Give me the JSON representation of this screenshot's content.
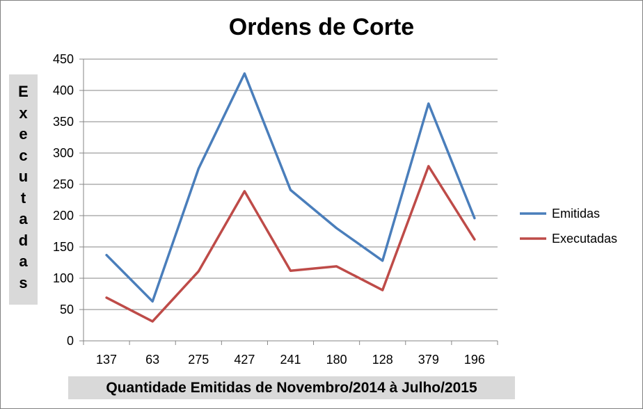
{
  "chart_data": {
    "type": "line",
    "title": "Ordens de Corte",
    "xlabel": "Quantidade Emitidas de Novembro/2014 à Julho/2015",
    "ylabel": "Executadas",
    "categories": [
      "137",
      "63",
      "275",
      "427",
      "241",
      "180",
      "128",
      "379",
      "196"
    ],
    "ylim": [
      0,
      450
    ],
    "yticks": [
      0,
      50,
      100,
      150,
      200,
      250,
      300,
      350,
      400,
      450
    ],
    "grid": true,
    "legend": "right",
    "series": [
      {
        "name": "Emitidas",
        "color": "#4a7ebb",
        "values": [
          137,
          63,
          275,
          427,
          241,
          180,
          128,
          379,
          196
        ]
      },
      {
        "name": "Executadas",
        "color": "#be4b48",
        "values": [
          69,
          31,
          111,
          239,
          112,
          119,
          81,
          279,
          162
        ]
      }
    ]
  }
}
